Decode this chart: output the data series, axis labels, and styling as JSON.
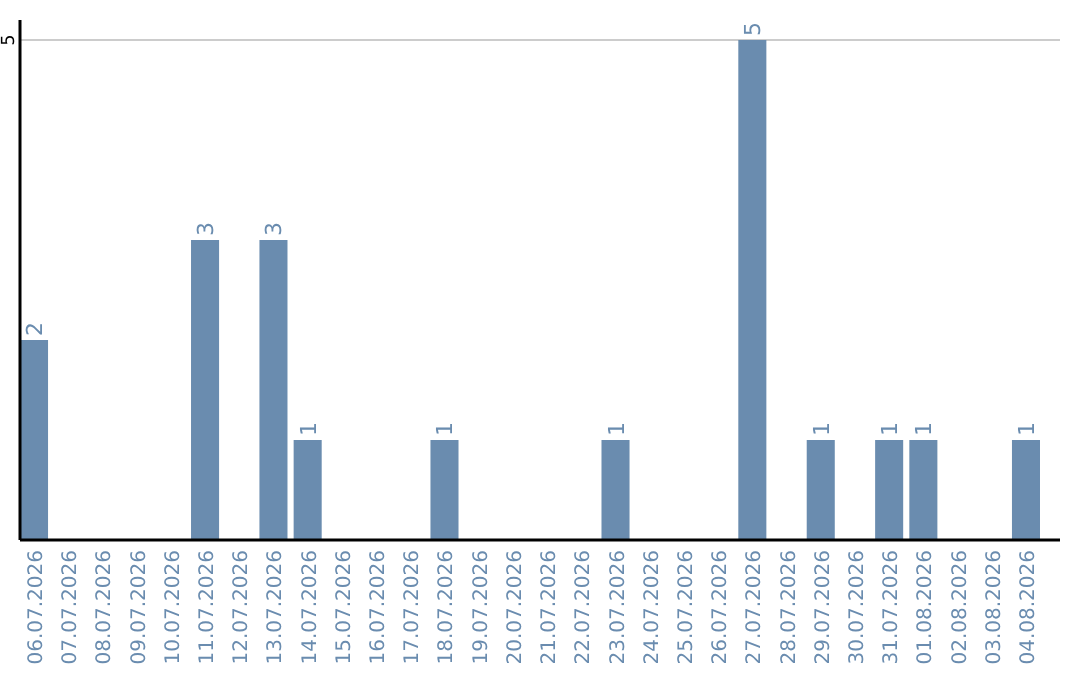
{
  "chart_data": {
    "type": "bar",
    "categories": [
      "06.07.2026",
      "07.07.2026",
      "08.07.2026",
      "09.07.2026",
      "10.07.2026",
      "11.07.2026",
      "12.07.2026",
      "13.07.2026",
      "14.07.2026",
      "15.07.2026",
      "16.07.2026",
      "17.07.2026",
      "18.07.2026",
      "19.07.2026",
      "20.07.2026",
      "21.07.2026",
      "22.07.2026",
      "23.07.2026",
      "24.07.2026",
      "25.07.2026",
      "26.07.2026",
      "27.07.2026",
      "28.07.2026",
      "29.07.2026",
      "30.07.2026",
      "31.07.2026",
      "01.08.2026",
      "02.08.2026",
      "03.08.2026",
      "04.08.2026"
    ],
    "values": [
      2,
      0,
      0,
      0,
      0,
      3,
      0,
      3,
      1,
      0,
      0,
      0,
      1,
      0,
      0,
      0,
      0,
      1,
      0,
      0,
      0,
      5,
      0,
      1,
      0,
      1,
      1,
      0,
      0,
      1
    ],
    "value_labels": [
      "2",
      null,
      null,
      null,
      null,
      "3",
      null,
      "3",
      "1",
      null,
      null,
      null,
      "1",
      null,
      null,
      null,
      null,
      "1",
      null,
      null,
      null,
      "5",
      null,
      "1",
      null,
      "1",
      "1",
      null,
      null,
      "1"
    ],
    "color": "#6a8caf",
    "ylim": [
      0,
      5.2
    ],
    "yticks": [
      5
    ],
    "grid": "y"
  }
}
